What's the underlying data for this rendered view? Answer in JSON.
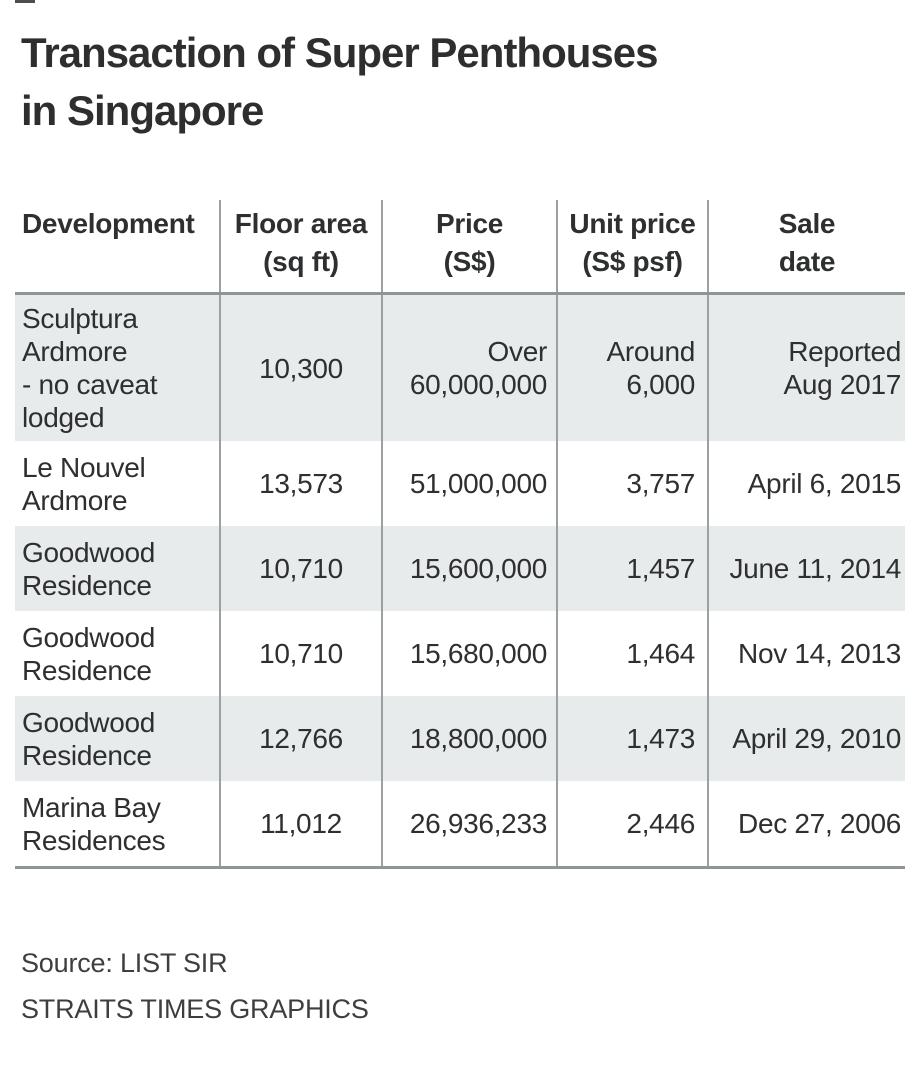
{
  "page": {
    "title": "Transaction of Super Penthouses\nin Singapore",
    "source": "Source: LIST SIR",
    "credit": "STRAITS TIMES GRAPHICS"
  },
  "table": {
    "headers": [
      "Development",
      "Floor area\n(sq ft)",
      "Price\n(S$)",
      "Unit price\n(S$ psf)",
      "Sale\ndate"
    ],
    "rows": [
      {
        "development": "Sculptura\nArdmore\n- no caveat\nlodged",
        "floor_area": "10,300",
        "price": "Over\n60,000,000",
        "unit_price": "Around\n6,000",
        "sale_date": "Reported\nAug 2017"
      },
      {
        "development": "Le Nouvel\nArdmore",
        "floor_area": "13,573",
        "price": "51,000,000",
        "unit_price": "3,757",
        "sale_date": "April 6, 2015"
      },
      {
        "development": "Goodwood\nResidence",
        "floor_area": "10,710",
        "price": "15,600,000",
        "unit_price": "1,457",
        "sale_date": "June 11, 2014"
      },
      {
        "development": "Goodwood\nResidence",
        "floor_area": "10,710",
        "price": "15,680,000",
        "unit_price": "1,464",
        "sale_date": "Nov 14, 2013"
      },
      {
        "development": "Goodwood\nResidence",
        "floor_area": "12,766",
        "price": "18,800,000",
        "unit_price": "1,473",
        "sale_date": "April 29, 2010"
      },
      {
        "development": "Marina Bay\nResidences",
        "floor_area": "11,012",
        "price": "26,936,233",
        "unit_price": "2,446",
        "sale_date": "Dec 27, 2006"
      }
    ]
  },
  "colors": {
    "row_stripe": "#e8ebec",
    "rule": "#8f9497",
    "divider": "#9ba0a3",
    "title_text": "#2e2e2e",
    "body_text": "#2d2f30"
  },
  "chart_data": {
    "type": "table",
    "title": "Transaction of Super Penthouses in Singapore",
    "columns": [
      "Development",
      "Floor area (sq ft)",
      "Price (S$)",
      "Unit price (S$ psf)",
      "Sale date"
    ],
    "rows": [
      [
        "Sculptura Ardmore - no caveat lodged",
        "10,300",
        "Over 60,000,000",
        "Around 6,000",
        "Reported Aug 2017"
      ],
      [
        "Le Nouvel Ardmore",
        "13,573",
        "51,000,000",
        "3,757",
        "April 6, 2015"
      ],
      [
        "Goodwood Residence",
        "10,710",
        "15,600,000",
        "1,457",
        "June 11, 2014"
      ],
      [
        "Goodwood Residence",
        "10,710",
        "15,680,000",
        "1,464",
        "Nov 14, 2013"
      ],
      [
        "Goodwood Residence",
        "12,766",
        "18,800,000",
        "1,473",
        "April 29, 2010"
      ],
      [
        "Marina Bay Residences",
        "11,012",
        "26,936,233",
        "2,446",
        "Dec 27, 2006"
      ]
    ],
    "source": "LIST SIR",
    "credit": "STRAITS TIMES GRAPHICS",
    "layout": {
      "striped_rows": [
        1,
        3,
        5
      ],
      "header_rule": true,
      "bottom_rule": true,
      "grid": "vertical-dividers-only"
    }
  }
}
